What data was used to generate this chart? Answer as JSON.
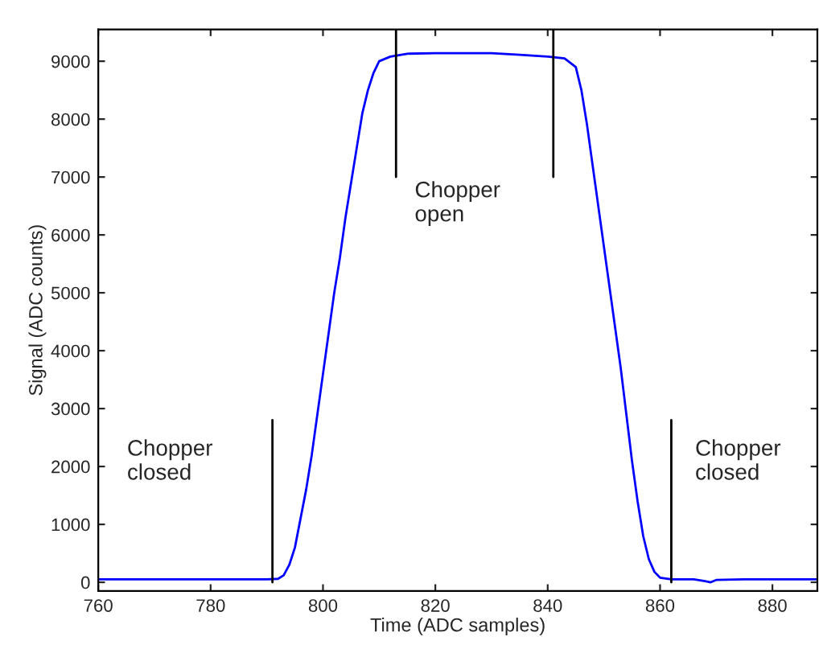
{
  "chart_data": {
    "type": "line",
    "xlabel": "Time (ADC samples)",
    "ylabel": "Signal (ADC counts)",
    "xlim": [
      760,
      888
    ],
    "ylim": [
      -150,
      9550
    ],
    "xticks": [
      760,
      780,
      800,
      820,
      840,
      860,
      880
    ],
    "yticks": [
      0,
      1000,
      2000,
      3000,
      4000,
      5000,
      6000,
      7000,
      8000,
      9000
    ],
    "grid": false,
    "legend": false,
    "line_style": "solid",
    "marker": "none",
    "series": [
      {
        "color": "#0000ff",
        "x": [
          760,
          790,
          792,
          793,
          794,
          795,
          796,
          797,
          798,
          799,
          800,
          801,
          802,
          803,
          804,
          805,
          806,
          807,
          808,
          809,
          810,
          812,
          815,
          820,
          830,
          835,
          840,
          843,
          845,
          846,
          847,
          848,
          849,
          850,
          851,
          852,
          853,
          854,
          855,
          856,
          857,
          858,
          859,
          860,
          862,
          866,
          868,
          869,
          870,
          875,
          888
        ],
        "values": [
          50,
          50,
          60,
          120,
          300,
          600,
          1100,
          1600,
          2200,
          2900,
          3600,
          4300,
          5000,
          5600,
          6300,
          6900,
          7500,
          8100,
          8500,
          8800,
          9000,
          9080,
          9130,
          9140,
          9140,
          9110,
          9080,
          9050,
          8900,
          8500,
          7900,
          7200,
          6500,
          5800,
          5100,
          4400,
          3700,
          2900,
          2100,
          1400,
          800,
          400,
          180,
          80,
          50,
          50,
          20,
          0,
          40,
          50,
          50
        ]
      },
      {
        "color": "#000000",
        "x": [
          791,
          791
        ],
        "values": [
          0,
          2800
        ]
      },
      {
        "color": "#000000",
        "x": [
          813,
          813
        ],
        "values": [
          7000,
          9550
        ]
      },
      {
        "color": "#000000",
        "x": [
          841,
          841
        ],
        "values": [
          7000,
          9550
        ]
      },
      {
        "color": "#000000",
        "x": [
          862,
          862
        ],
        "values": [
          0,
          2800
        ]
      }
    ],
    "annotations": [
      "Chopper\nclosed",
      "Chopper\nopen",
      "Chopper\nclosed"
    ]
  }
}
